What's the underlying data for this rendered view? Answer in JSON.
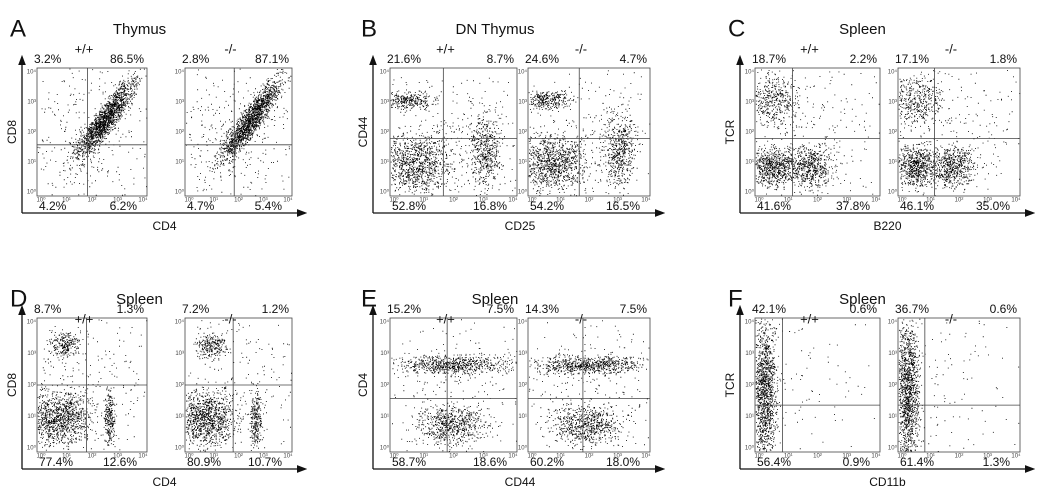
{
  "figure": {
    "axis_ticks": [
      "10⁰",
      "10¹",
      "10²",
      "10³",
      "10⁴"
    ],
    "panels": [
      {
        "letter": "A",
        "title": "Thymus",
        "y_label": "CD8",
        "x_label": "CD4",
        "plots": [
          {
            "genotype": "+/+",
            "top_left": "3.2%",
            "top_right": "86.5%",
            "bottom_left": "4.2%",
            "bottom_right": "6.2%"
          },
          {
            "genotype": "-/-",
            "top_left": "2.8%",
            "top_right": "87.1%",
            "bottom_left": "4.7%",
            "bottom_right": "5.4%"
          }
        ]
      },
      {
        "letter": "B",
        "title": "DN Thymus",
        "y_label": "CD44",
        "x_label": "CD25",
        "plots": [
          {
            "genotype": "+/+",
            "top_left": "21.6%",
            "top_right": "8.7%",
            "bottom_left": "52.8%",
            "bottom_right": "16.8%"
          },
          {
            "genotype": "-/-",
            "top_left": "24.6%",
            "top_right": "4.7%",
            "bottom_left": "54.2%",
            "bottom_right": "16.5%"
          }
        ]
      },
      {
        "letter": "C",
        "title": "Spleen",
        "y_label": "TCR",
        "x_label": "B220",
        "plots": [
          {
            "genotype": "+/+",
            "top_left": "18.7%",
            "top_right": "2.2%",
            "bottom_left": "41.6%",
            "bottom_right": "37.8%"
          },
          {
            "genotype": "-/-",
            "top_left": "17.1%",
            "top_right": "1.8%",
            "bottom_left": "46.1%",
            "bottom_right": "35.0%"
          }
        ]
      },
      {
        "letter": "D",
        "title": "Spleen",
        "y_label": "CD8",
        "x_label": "CD4",
        "plots": [
          {
            "genotype": "+/+",
            "top_left": "8.7%",
            "top_right": "1.3%",
            "bottom_left": "77.4%",
            "bottom_right": "12.6%"
          },
          {
            "genotype": "-/-",
            "top_left": "7.2%",
            "top_right": "1.2%",
            "bottom_left": "80.9%",
            "bottom_right": "10.7%"
          }
        ]
      },
      {
        "letter": "E",
        "title": "Spleen",
        "y_label": "CD4",
        "x_label": "CD44",
        "plots": [
          {
            "genotype": "+/+",
            "top_left": "15.2%",
            "top_right": "7.5%",
            "bottom_left": "58.7%",
            "bottom_right": "18.6%"
          },
          {
            "genotype": "-/-",
            "top_left": "14.3%",
            "top_right": "7.5%",
            "bottom_left": "60.2%",
            "bottom_right": "18.0%"
          }
        ]
      },
      {
        "letter": "F",
        "title": "Spleen",
        "y_label": "TCR",
        "x_label": "CD11b",
        "plots": [
          {
            "genotype": "+/+",
            "top_left": "42.1%",
            "top_right": "0.6%",
            "bottom_left": "56.4%",
            "bottom_right": "0.9%"
          },
          {
            "genotype": "-/-",
            "top_left": "36.7%",
            "top_right": "0.6%",
            "bottom_left": "61.4%",
            "bottom_right": "1.3%"
          }
        ]
      }
    ]
  }
}
